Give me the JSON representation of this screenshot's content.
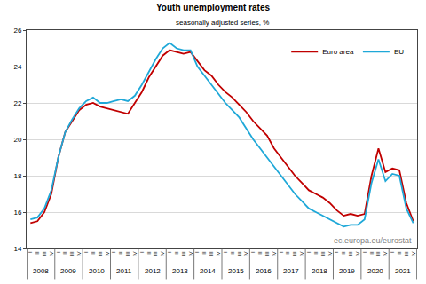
{
  "chart_data": {
    "type": "line",
    "title": "Youth unemployment rates",
    "subtitle": "seasonally adjusted series, %",
    "annotations": [
      "ec.europa.eu/eurostat"
    ],
    "categories": [
      [
        "2008",
        "I"
      ],
      [
        "2008",
        "II"
      ],
      [
        "2008",
        "III"
      ],
      [
        "2008",
        "IV"
      ],
      [
        "2009",
        "I"
      ],
      [
        "2009",
        "II"
      ],
      [
        "2009",
        "III"
      ],
      [
        "2009",
        "IV"
      ],
      [
        "2010",
        "I"
      ],
      [
        "2010",
        "II"
      ],
      [
        "2010",
        "III"
      ],
      [
        "2010",
        "IV"
      ],
      [
        "2011",
        "I"
      ],
      [
        "2011",
        "II"
      ],
      [
        "2011",
        "III"
      ],
      [
        "2011",
        "IV"
      ],
      [
        "2012",
        "I"
      ],
      [
        "2012",
        "II"
      ],
      [
        "2012",
        "III"
      ],
      [
        "2012",
        "IV"
      ],
      [
        "2013",
        "I"
      ],
      [
        "2013",
        "II"
      ],
      [
        "2013",
        "III"
      ],
      [
        "2013",
        "IV"
      ],
      [
        "2014",
        "I"
      ],
      [
        "2014",
        "II"
      ],
      [
        "2014",
        "III"
      ],
      [
        "2014",
        "IV"
      ],
      [
        "2015",
        "I"
      ],
      [
        "2015",
        "II"
      ],
      [
        "2015",
        "III"
      ],
      [
        "2015",
        "IV"
      ],
      [
        "2016",
        "I"
      ],
      [
        "2016",
        "II"
      ],
      [
        "2016",
        "III"
      ],
      [
        "2016",
        "IV"
      ],
      [
        "2017",
        "I"
      ],
      [
        "2017",
        "II"
      ],
      [
        "2017",
        "III"
      ],
      [
        "2017",
        "IV"
      ],
      [
        "2018",
        "I"
      ],
      [
        "2018",
        "II"
      ],
      [
        "2018",
        "III"
      ],
      [
        "2018",
        "IV"
      ],
      [
        "2019",
        "I"
      ],
      [
        "2019",
        "II"
      ],
      [
        "2019",
        "III"
      ],
      [
        "2019",
        "IV"
      ],
      [
        "2020",
        "I"
      ],
      [
        "2020",
        "II"
      ],
      [
        "2020",
        "III"
      ],
      [
        "2020",
        "IV"
      ],
      [
        "2021",
        "I"
      ],
      [
        "2021",
        "II"
      ],
      [
        "2021",
        "III"
      ],
      [
        "2021",
        "IV"
      ]
    ],
    "series": [
      {
        "name": "Euro area",
        "color": "#c00000",
        "values": [
          15.4,
          15.5,
          16.0,
          17.0,
          19.0,
          20.4,
          21.0,
          21.6,
          21.9,
          22.0,
          21.8,
          21.7,
          21.6,
          21.5,
          21.4,
          22.0,
          22.6,
          23.4,
          24.0,
          24.6,
          24.9,
          24.8,
          24.7,
          24.8,
          24.3,
          23.8,
          23.5,
          23.0,
          22.6,
          22.3,
          21.9,
          21.5,
          21.0,
          20.6,
          20.2,
          19.5,
          19.0,
          18.5,
          18.0,
          17.6,
          17.2,
          17.0,
          16.8,
          16.5,
          16.1,
          15.8,
          15.9,
          15.8,
          15.9,
          18.0,
          19.5,
          18.2,
          18.4,
          18.3,
          16.5,
          15.5
        ]
      },
      {
        "name": "EU",
        "color": "#1fa8d8",
        "values": [
          15.6,
          15.7,
          16.2,
          17.2,
          19.0,
          20.4,
          21.1,
          21.7,
          22.1,
          22.3,
          22.0,
          22.0,
          22.1,
          22.2,
          22.1,
          22.4,
          23.0,
          23.7,
          24.4,
          25.0,
          25.3,
          25.0,
          24.9,
          24.9,
          24.0,
          23.5,
          23.0,
          22.5,
          22.0,
          21.6,
          21.2,
          20.6,
          20.0,
          19.5,
          19.0,
          18.5,
          18.0,
          17.5,
          17.0,
          16.6,
          16.2,
          16.0,
          15.8,
          15.6,
          15.4,
          15.2,
          15.3,
          15.3,
          15.6,
          17.6,
          18.9,
          17.7,
          18.1,
          18.0,
          16.2,
          15.4
        ]
      }
    ],
    "ylim": [
      14,
      26
    ],
    "yticks": [
      14,
      16,
      18,
      20,
      22,
      24,
      26
    ],
    "grid": true,
    "legend": "top right"
  }
}
